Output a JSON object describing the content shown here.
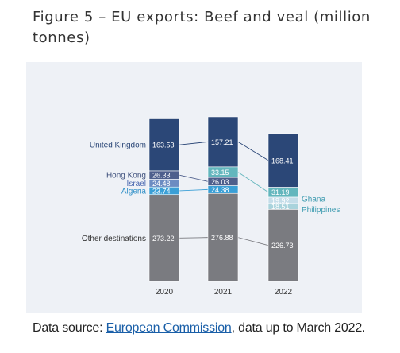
{
  "title": "Figure 5 – EU exports: Beef and veal (million tonnes)",
  "source": {
    "prefix": "Data source: ",
    "link_text": "European Commission",
    "suffix": ", data up to March 2022."
  },
  "chart_data": {
    "type": "bar",
    "stacked": true,
    "categories": [
      "2020",
      "2021",
      "2022"
    ],
    "series": [
      {
        "name": "Other destinations",
        "values": [
          273.22,
          276.88,
          226.73
        ],
        "color": "#7a7b80",
        "label_color": "#333333"
      },
      {
        "name": "Algeria",
        "values": [
          23.74,
          24.38,
          null
        ],
        "color": "#3a9fd6",
        "label_color": "#2f8fc7"
      },
      {
        "name": "Philippines",
        "values": [
          null,
          null,
          18.51
        ],
        "color": "#a9d3dc",
        "label_color": "#3d9bb0"
      },
      {
        "name": "Israel",
        "values": [
          24.48,
          null,
          null
        ],
        "color": "#6c8cc2",
        "label_color": "#4a68b0"
      },
      {
        "name": "Ghana",
        "values": [
          null,
          null,
          19.92
        ],
        "color": "#c4dde9",
        "label_color": "#3d9bb0"
      },
      {
        "name": "Hong Kong",
        "values": [
          26.33,
          26.03,
          null
        ],
        "color": "#4e5f8c",
        "label_color": "#3b4d7a"
      },
      {
        "name": "",
        "values": [
          null,
          33.15,
          31.19
        ],
        "color": "#63b6bd",
        "label_color": "#3b4d7a"
      },
      {
        "name": "United Kingdom",
        "values": [
          163.53,
          157.21,
          168.41
        ],
        "color": "#2b4777",
        "label_color": "#2b4777"
      }
    ],
    "data_labels": [
      [
        "273.22",
        "276.88",
        "226.73"
      ],
      [
        "23.74",
        "24.38",
        ""
      ],
      [
        "",
        "",
        "18.51"
      ],
      [
        "24.48",
        "",
        ""
      ],
      [
        "",
        "",
        "19.92"
      ],
      [
        "26.33",
        "26.03",
        ""
      ],
      [
        "",
        "33.15",
        "31.19"
      ],
      [
        "163.53",
        "157.21",
        "168.41"
      ]
    ],
    "legend_placement": "inline labels beside bars",
    "grid": false
  }
}
